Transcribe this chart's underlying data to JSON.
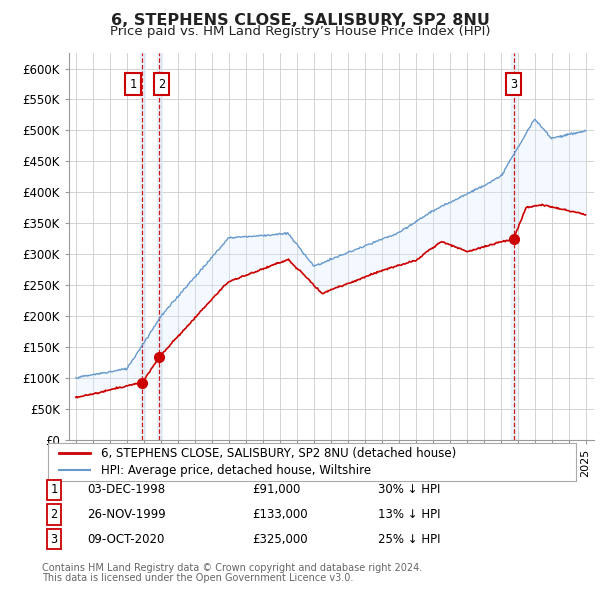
{
  "title": "6, STEPHENS CLOSE, SALISBURY, SP2 8NU",
  "subtitle": "Price paid vs. HM Land Registry’s House Price Index (HPI)",
  "ylabel_ticks": [
    "£0",
    "£50K",
    "£100K",
    "£150K",
    "£200K",
    "£250K",
    "£300K",
    "£350K",
    "£400K",
    "£450K",
    "£500K",
    "£550K",
    "£600K"
  ],
  "ytick_vals": [
    0,
    50000,
    100000,
    150000,
    200000,
    250000,
    300000,
    350000,
    400000,
    450000,
    500000,
    550000,
    600000
  ],
  "ylim": [
    0,
    625000
  ],
  "xlim_start": 1994.6,
  "xlim_end": 2025.5,
  "sales": [
    {
      "num": 1,
      "date": "03-DEC-1998",
      "price": 91000,
      "year": 1998.92,
      "pct": "30%",
      "dir": "↓"
    },
    {
      "num": 2,
      "date": "26-NOV-1999",
      "price": 133000,
      "year": 1999.9,
      "pct": "13%",
      "dir": "↓"
    },
    {
      "num": 3,
      "date": "09-OCT-2020",
      "price": 325000,
      "year": 2020.77,
      "pct": "25%",
      "dir": "↓"
    }
  ],
  "legend_line1": "6, STEPHENS CLOSE, SALISBURY, SP2 8NU (detached house)",
  "legend_line2": "HPI: Average price, detached house, Wiltshire",
  "footer1": "Contains HM Land Registry data © Crown copyright and database right 2024.",
  "footer2": "This data is licensed under the Open Government Licence v3.0.",
  "line_color_red": "#cc0000",
  "line_color_blue": "#6699cc",
  "shading_color": "#ddeeff",
  "background_color": "#ffffff",
  "grid_color": "#cccccc"
}
